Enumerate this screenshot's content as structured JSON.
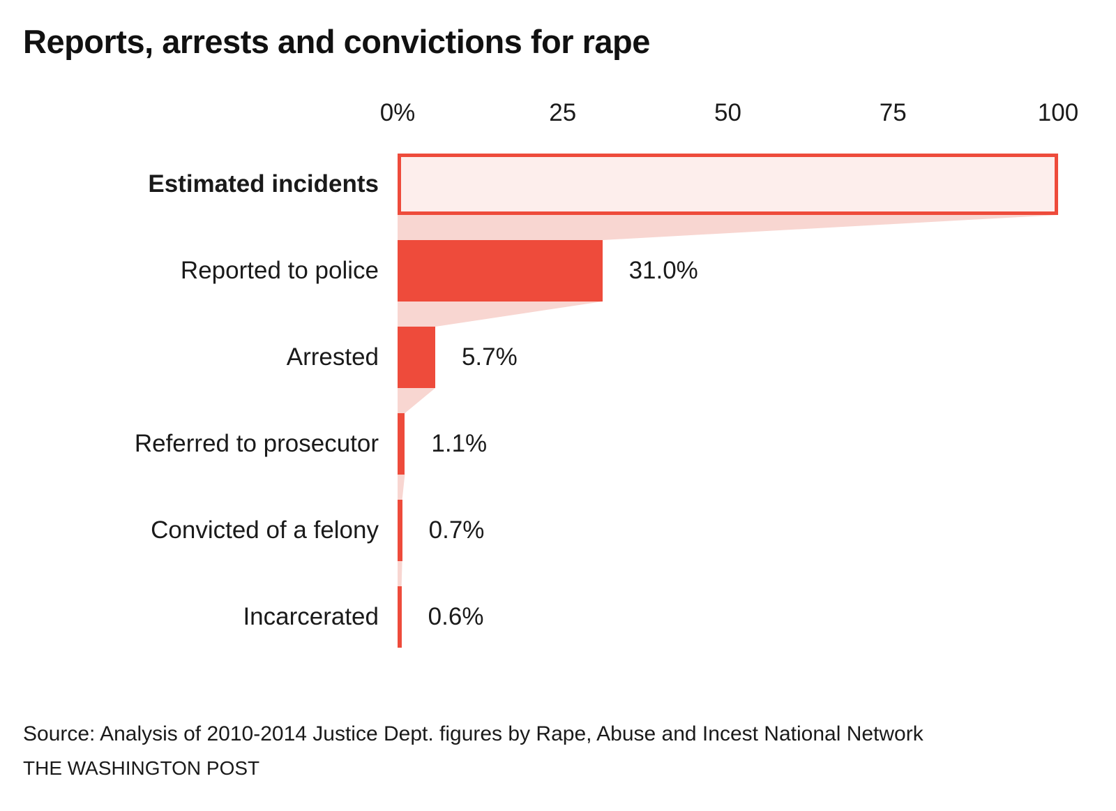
{
  "title": "Reports, arrests and convictions for rape",
  "colors": {
    "bar": "#ee4b3b",
    "bar_light_fill": "#fdeeec",
    "connector": "#f8d6d1",
    "text": "#1a1a1a"
  },
  "chart_data": {
    "type": "bar",
    "orientation": "horizontal-funnel",
    "title": "Reports, arrests and convictions for rape",
    "categories": [
      "Estimated incidents",
      "Reported to police",
      "Arrested",
      "Referred to prosecutor",
      "Convicted of a felony",
      "Incarcerated"
    ],
    "values": [
      100,
      31.0,
      5.7,
      1.1,
      0.7,
      0.6
    ],
    "value_labels": [
      "",
      "31.0%",
      "5.7%",
      "1.1%",
      "0.7%",
      "0.6%"
    ],
    "xlim": [
      0,
      100
    ],
    "x_ticks": [
      {
        "value": 0,
        "label": "0%"
      },
      {
        "value": 25,
        "label": "25"
      },
      {
        "value": 50,
        "label": "50"
      },
      {
        "value": 75,
        "label": "75"
      },
      {
        "value": 100,
        "label": "100"
      }
    ],
    "grid": false,
    "legend": "none"
  },
  "source": {
    "line1": "Source: Analysis of 2010-2014 Justice Dept. figures by Rape, Abuse and Incest National Network",
    "line2": "THE WASHINGTON POST"
  }
}
